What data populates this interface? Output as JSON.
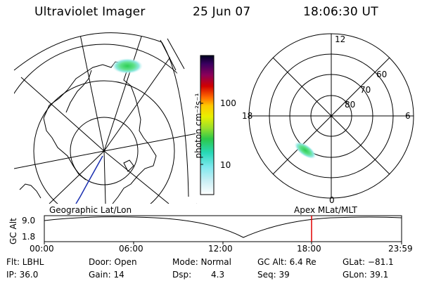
{
  "header": {
    "title": "Ultraviolet Imager",
    "date": "25 Jun 07",
    "time": "18:06:30 UT"
  },
  "colorbar": {
    "label": "photon cm⁻²s⁻¹",
    "ticks": [
      "100",
      "10"
    ]
  },
  "polar": {
    "mlt_labels": {
      "top": "12",
      "left": "18",
      "right": "6",
      "bottom": "0"
    },
    "lat_labels": [
      "60",
      "70",
      "80"
    ]
  },
  "projection_labels": {
    "left": "Geographic Lat/Lon",
    "right": "Apex  MLat/MLT"
  },
  "altitude_plot": {
    "axis_label": "GC Alt",
    "y_ticks": [
      "9.0",
      "1.8"
    ],
    "x_ticks": [
      "00:00",
      "06:00",
      "12:00",
      "18:00",
      "23:59"
    ]
  },
  "status": {
    "filter": "Flt: LBHL",
    "door": "Door: Open",
    "mode": "Mode: Normal",
    "gc_alt": "GC Alt: 6.4 Re",
    "glat": "GLat: −81.1",
    "ip": "IP: 36.0",
    "gain": "Gain: 14",
    "dsp_label": "Dsp:",
    "dsp_value": "4.3",
    "seq": "Seq: 39",
    "glon": "GLon: 39.1"
  }
}
